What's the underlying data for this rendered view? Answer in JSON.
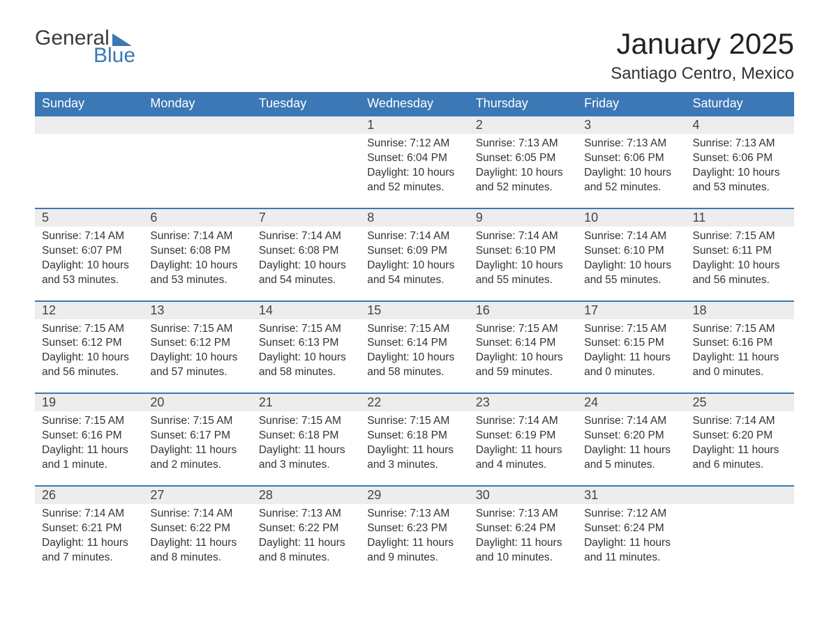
{
  "logo": {
    "word1": "General",
    "word2": "Blue"
  },
  "title": "January 2025",
  "location": "Santiago Centro, Mexico",
  "columns": [
    "Sunday",
    "Monday",
    "Tuesday",
    "Wednesday",
    "Thursday",
    "Friday",
    "Saturday"
  ],
  "colors": {
    "header_bg": "#3b78b5",
    "header_text": "#ffffff",
    "daynum_bg": "#ededed",
    "daynum_border": "#3b78b5",
    "body_text": "#333333",
    "logo_gray": "#3b3b3b",
    "logo_blue": "#3b78b5",
    "page_bg": "#ffffff"
  },
  "typography": {
    "title_fontsize": 42,
    "location_fontsize": 24,
    "header_fontsize": 18,
    "daynum_fontsize": 18,
    "cell_fontsize": 15.5,
    "logo_fontsize": 30
  },
  "weeks": [
    {
      "nums": [
        "",
        "",
        "",
        "1",
        "2",
        "3",
        "4"
      ],
      "cells": [
        {},
        {},
        {},
        {
          "sunrise": "Sunrise: 7:12 AM",
          "sunset": "Sunset: 6:04 PM",
          "day1": "Daylight: 10 hours",
          "day2": "and 52 minutes."
        },
        {
          "sunrise": "Sunrise: 7:13 AM",
          "sunset": "Sunset: 6:05 PM",
          "day1": "Daylight: 10 hours",
          "day2": "and 52 minutes."
        },
        {
          "sunrise": "Sunrise: 7:13 AM",
          "sunset": "Sunset: 6:06 PM",
          "day1": "Daylight: 10 hours",
          "day2": "and 52 minutes."
        },
        {
          "sunrise": "Sunrise: 7:13 AM",
          "sunset": "Sunset: 6:06 PM",
          "day1": "Daylight: 10 hours",
          "day2": "and 53 minutes."
        }
      ]
    },
    {
      "nums": [
        "5",
        "6",
        "7",
        "8",
        "9",
        "10",
        "11"
      ],
      "cells": [
        {
          "sunrise": "Sunrise: 7:14 AM",
          "sunset": "Sunset: 6:07 PM",
          "day1": "Daylight: 10 hours",
          "day2": "and 53 minutes."
        },
        {
          "sunrise": "Sunrise: 7:14 AM",
          "sunset": "Sunset: 6:08 PM",
          "day1": "Daylight: 10 hours",
          "day2": "and 53 minutes."
        },
        {
          "sunrise": "Sunrise: 7:14 AM",
          "sunset": "Sunset: 6:08 PM",
          "day1": "Daylight: 10 hours",
          "day2": "and 54 minutes."
        },
        {
          "sunrise": "Sunrise: 7:14 AM",
          "sunset": "Sunset: 6:09 PM",
          "day1": "Daylight: 10 hours",
          "day2": "and 54 minutes."
        },
        {
          "sunrise": "Sunrise: 7:14 AM",
          "sunset": "Sunset: 6:10 PM",
          "day1": "Daylight: 10 hours",
          "day2": "and 55 minutes."
        },
        {
          "sunrise": "Sunrise: 7:14 AM",
          "sunset": "Sunset: 6:10 PM",
          "day1": "Daylight: 10 hours",
          "day2": "and 55 minutes."
        },
        {
          "sunrise": "Sunrise: 7:15 AM",
          "sunset": "Sunset: 6:11 PM",
          "day1": "Daylight: 10 hours",
          "day2": "and 56 minutes."
        }
      ]
    },
    {
      "nums": [
        "12",
        "13",
        "14",
        "15",
        "16",
        "17",
        "18"
      ],
      "cells": [
        {
          "sunrise": "Sunrise: 7:15 AM",
          "sunset": "Sunset: 6:12 PM",
          "day1": "Daylight: 10 hours",
          "day2": "and 56 minutes."
        },
        {
          "sunrise": "Sunrise: 7:15 AM",
          "sunset": "Sunset: 6:12 PM",
          "day1": "Daylight: 10 hours",
          "day2": "and 57 minutes."
        },
        {
          "sunrise": "Sunrise: 7:15 AM",
          "sunset": "Sunset: 6:13 PM",
          "day1": "Daylight: 10 hours",
          "day2": "and 58 minutes."
        },
        {
          "sunrise": "Sunrise: 7:15 AM",
          "sunset": "Sunset: 6:14 PM",
          "day1": "Daylight: 10 hours",
          "day2": "and 58 minutes."
        },
        {
          "sunrise": "Sunrise: 7:15 AM",
          "sunset": "Sunset: 6:14 PM",
          "day1": "Daylight: 10 hours",
          "day2": "and 59 minutes."
        },
        {
          "sunrise": "Sunrise: 7:15 AM",
          "sunset": "Sunset: 6:15 PM",
          "day1": "Daylight: 11 hours",
          "day2": "and 0 minutes."
        },
        {
          "sunrise": "Sunrise: 7:15 AM",
          "sunset": "Sunset: 6:16 PM",
          "day1": "Daylight: 11 hours",
          "day2": "and 0 minutes."
        }
      ]
    },
    {
      "nums": [
        "19",
        "20",
        "21",
        "22",
        "23",
        "24",
        "25"
      ],
      "cells": [
        {
          "sunrise": "Sunrise: 7:15 AM",
          "sunset": "Sunset: 6:16 PM",
          "day1": "Daylight: 11 hours",
          "day2": "and 1 minute."
        },
        {
          "sunrise": "Sunrise: 7:15 AM",
          "sunset": "Sunset: 6:17 PM",
          "day1": "Daylight: 11 hours",
          "day2": "and 2 minutes."
        },
        {
          "sunrise": "Sunrise: 7:15 AM",
          "sunset": "Sunset: 6:18 PM",
          "day1": "Daylight: 11 hours",
          "day2": "and 3 minutes."
        },
        {
          "sunrise": "Sunrise: 7:15 AM",
          "sunset": "Sunset: 6:18 PM",
          "day1": "Daylight: 11 hours",
          "day2": "and 3 minutes."
        },
        {
          "sunrise": "Sunrise: 7:14 AM",
          "sunset": "Sunset: 6:19 PM",
          "day1": "Daylight: 11 hours",
          "day2": "and 4 minutes."
        },
        {
          "sunrise": "Sunrise: 7:14 AM",
          "sunset": "Sunset: 6:20 PM",
          "day1": "Daylight: 11 hours",
          "day2": "and 5 minutes."
        },
        {
          "sunrise": "Sunrise: 7:14 AM",
          "sunset": "Sunset: 6:20 PM",
          "day1": "Daylight: 11 hours",
          "day2": "and 6 minutes."
        }
      ]
    },
    {
      "nums": [
        "26",
        "27",
        "28",
        "29",
        "30",
        "31",
        ""
      ],
      "cells": [
        {
          "sunrise": "Sunrise: 7:14 AM",
          "sunset": "Sunset: 6:21 PM",
          "day1": "Daylight: 11 hours",
          "day2": "and 7 minutes."
        },
        {
          "sunrise": "Sunrise: 7:14 AM",
          "sunset": "Sunset: 6:22 PM",
          "day1": "Daylight: 11 hours",
          "day2": "and 8 minutes."
        },
        {
          "sunrise": "Sunrise: 7:13 AM",
          "sunset": "Sunset: 6:22 PM",
          "day1": "Daylight: 11 hours",
          "day2": "and 8 minutes."
        },
        {
          "sunrise": "Sunrise: 7:13 AM",
          "sunset": "Sunset: 6:23 PM",
          "day1": "Daylight: 11 hours",
          "day2": "and 9 minutes."
        },
        {
          "sunrise": "Sunrise: 7:13 AM",
          "sunset": "Sunset: 6:24 PM",
          "day1": "Daylight: 11 hours",
          "day2": "and 10 minutes."
        },
        {
          "sunrise": "Sunrise: 7:12 AM",
          "sunset": "Sunset: 6:24 PM",
          "day1": "Daylight: 11 hours",
          "day2": "and 11 minutes."
        },
        {}
      ]
    }
  ]
}
